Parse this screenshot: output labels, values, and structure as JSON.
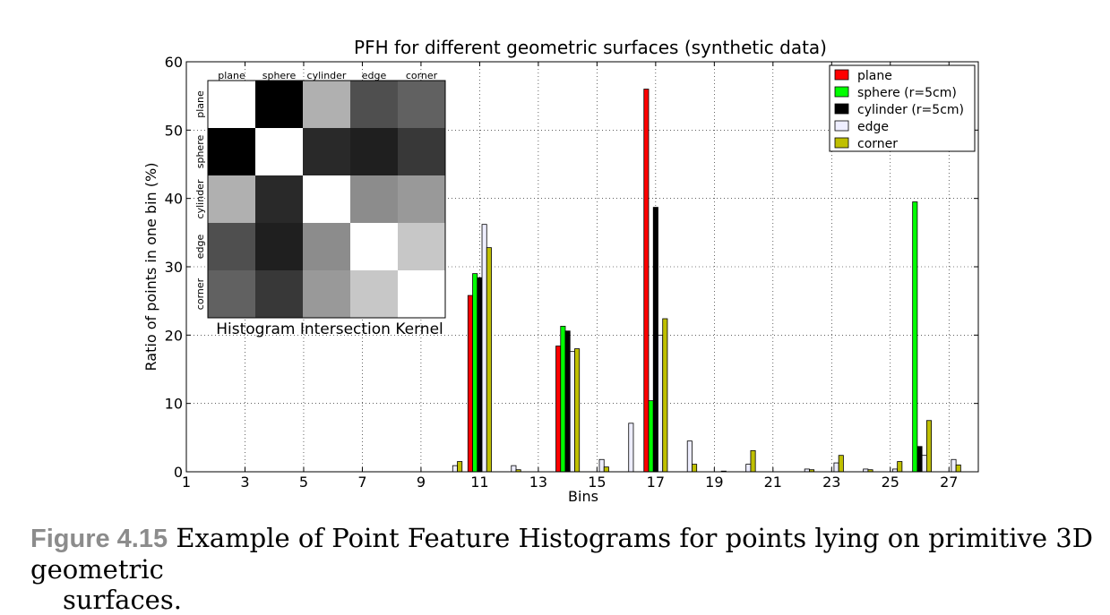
{
  "chart_data": {
    "type": "bar",
    "title": "PFH for different geometric surfaces (synthetic data)",
    "xlabel": "Bins",
    "ylabel": "Ratio of points in one bin (%)",
    "xlim": [
      1,
      28
    ],
    "ylim": [
      0,
      60
    ],
    "xticks": [
      "1",
      "3",
      "5",
      "7",
      "9",
      "11",
      "13",
      "15",
      "17",
      "19",
      "21",
      "23",
      "25",
      "27"
    ],
    "yticks": [
      "0",
      "10",
      "20",
      "30",
      "40",
      "50",
      "60"
    ],
    "grid": true,
    "legend_position": "top-right",
    "bins": [
      10,
      11,
      12,
      13,
      14,
      15,
      16,
      17,
      18,
      19,
      20,
      21,
      22,
      23,
      24,
      25,
      26,
      27
    ],
    "series": [
      {
        "name": "plane",
        "color": "#ff0000",
        "values": [
          0,
          25.8,
          0,
          0,
          18.4,
          0,
          0,
          56.0,
          0,
          0,
          0,
          0,
          0,
          0,
          0,
          0,
          0,
          0
        ]
      },
      {
        "name": "sphere (r=5cm)",
        "color": "#00ff00",
        "values": [
          0,
          29.0,
          0,
          0,
          21.3,
          0,
          0,
          10.4,
          0,
          0,
          0,
          0,
          0,
          0,
          0,
          0,
          39.5,
          0
        ]
      },
      {
        "name": "cylinder (r=5cm)",
        "color": "#000000",
        "values": [
          0,
          28.4,
          0,
          0,
          20.6,
          0,
          0,
          38.7,
          0,
          0,
          0,
          0,
          0,
          0,
          0,
          0,
          3.7,
          0
        ]
      },
      {
        "name": "edge",
        "color": "#eeeeff",
        "values": [
          0.9,
          36.2,
          0.9,
          0,
          17.6,
          1.8,
          7.1,
          20.0,
          4.5,
          0,
          1.1,
          0,
          0.4,
          1.3,
          0.4,
          0.4,
          2.4,
          1.8
        ]
      },
      {
        "name": "corner",
        "color": "#bfbf00",
        "values": [
          1.5,
          32.8,
          0.3,
          0,
          18.0,
          0.7,
          0,
          22.4,
          1.1,
          0.1,
          3.1,
          0,
          0.3,
          2.4,
          0.3,
          1.5,
          7.5,
          1.0
        ]
      }
    ],
    "inset": {
      "type": "heatmap",
      "caption": "Histogram Intersection Kernel",
      "labels": [
        "plane",
        "sphere",
        "cylinder",
        "edge",
        "corner"
      ],
      "matrix": [
        [
          1.0,
          0.0,
          0.69,
          0.31,
          0.38
        ],
        [
          0.0,
          1.0,
          0.16,
          0.12,
          0.22
        ],
        [
          0.69,
          0.16,
          1.0,
          0.55,
          0.6
        ],
        [
          0.31,
          0.12,
          0.55,
          1.0,
          0.78
        ],
        [
          0.38,
          0.22,
          0.6,
          0.78,
          1.0
        ]
      ]
    }
  },
  "caption": {
    "label": "Figure 4.15",
    "line1": "Example of Point Feature Histograms for points lying on primitive 3D geometric",
    "line2": "surfaces."
  }
}
